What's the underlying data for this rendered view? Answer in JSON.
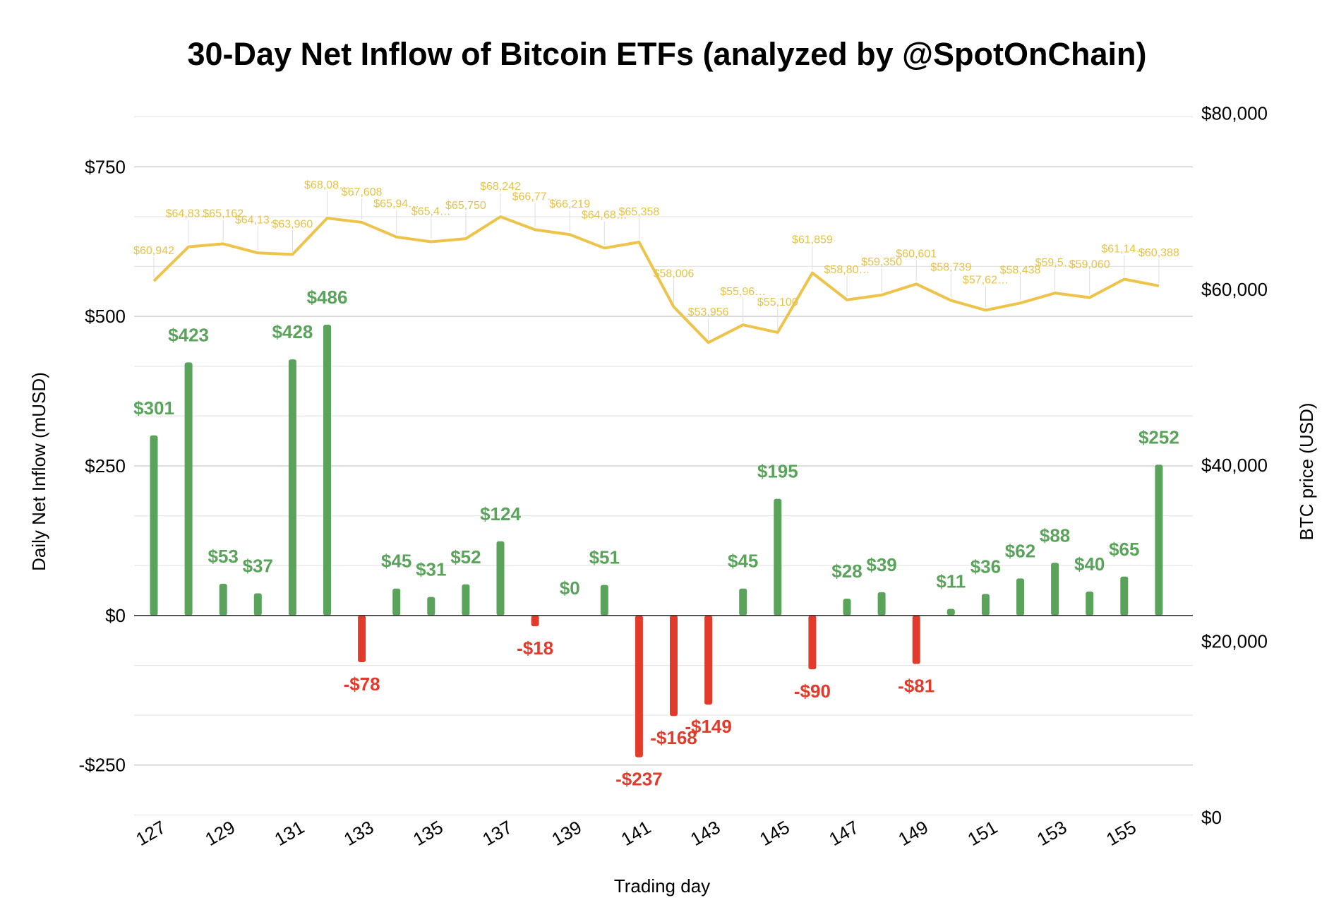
{
  "chart_data": {
    "type": "bar",
    "title": "30-Day Net Inflow of Bitcoin ETFs (analyzed by @SpotOnChain)",
    "xlabel": "Trading day",
    "ylabel": "Daily Net Inflow (mUSD)",
    "y2label": "BTC price (USD)",
    "x": [
      127,
      128,
      129,
      130,
      131,
      132,
      133,
      134,
      135,
      136,
      137,
      138,
      139,
      140,
      141,
      142,
      143,
      144,
      145,
      146,
      147,
      148,
      149,
      150,
      151,
      152,
      153,
      154,
      155,
      156
    ],
    "x_tick_labels": [
      "127",
      "129",
      "131",
      "133",
      "135",
      "137",
      "139",
      "141",
      "143",
      "145",
      "147",
      "149",
      "151",
      "153",
      "155"
    ],
    "ylim": [
      -340,
      840
    ],
    "y_ticks": [
      -250,
      0,
      250,
      500,
      750
    ],
    "y_tick_labels": [
      "-$250",
      "$0",
      "$250",
      "$500",
      "$750"
    ],
    "y2lim": [
      0,
      80000
    ],
    "y2_ticks": [
      0,
      20000,
      40000,
      60000,
      80000
    ],
    "y2_tick_labels": [
      "$0",
      "$20,000",
      "$40,000",
      "$60,000",
      "$80,000"
    ],
    "grid": true,
    "legend": "none",
    "series": [
      {
        "axis": "left",
        "type": "bar",
        "values": [
          301,
          423,
          53,
          37,
          428,
          486,
          -78,
          45,
          31,
          52,
          124,
          -18,
          0,
          51,
          -237,
          -168,
          -149,
          45,
          195,
          -90,
          28,
          39,
          -81,
          11,
          36,
          62,
          88,
          40,
          65,
          252
        ],
        "labels": [
          "$301",
          "$423",
          "$53",
          "$37",
          "$428",
          "$486",
          "-$78",
          "$45",
          "$31",
          "$52",
          "$124",
          "-$18",
          "$0",
          "$51",
          "-$237",
          "-$168",
          "-$149",
          "$45",
          "$195",
          "-$90",
          "$28",
          "$39",
          "-$81",
          "$11",
          "$36",
          "$62",
          "$88",
          "$40",
          "$65",
          "$252"
        ]
      },
      {
        "axis": "right",
        "type": "line",
        "values": [
          60942,
          64830,
          65162,
          64130,
          63960,
          68080,
          67608,
          65942,
          65400,
          65750,
          68242,
          66770,
          66219,
          64680,
          65358,
          58006,
          53956,
          55960,
          55100,
          61859,
          58800,
          59350,
          60601,
          58739,
          57624,
          58438,
          59570,
          59060,
          61145,
          60388
        ],
        "labels": [
          "$60,942",
          "$64,83…",
          "$65,162",
          "$64,13…",
          "$63,960",
          "$68,08…",
          "$67,608",
          "$65,94…",
          "$65,4…",
          "$65,750",
          "$68,242",
          "$66,77…",
          "$66,219",
          "$64,68…",
          "$65,358",
          "$58,006",
          "$53,956",
          "$55,96…",
          "$55,100",
          "$61,859",
          "$58,80…",
          "$59,350",
          "$60,601",
          "$58,739",
          "$57,62…",
          "$58,438",
          "$59,5…",
          "$59,060",
          "$61,14…",
          "$60,388"
        ]
      }
    ],
    "colors": {
      "positive": "#5aa35a",
      "negative": "#e23a2b",
      "line": "#edc34a",
      "price_text": "#e7c245"
    }
  }
}
